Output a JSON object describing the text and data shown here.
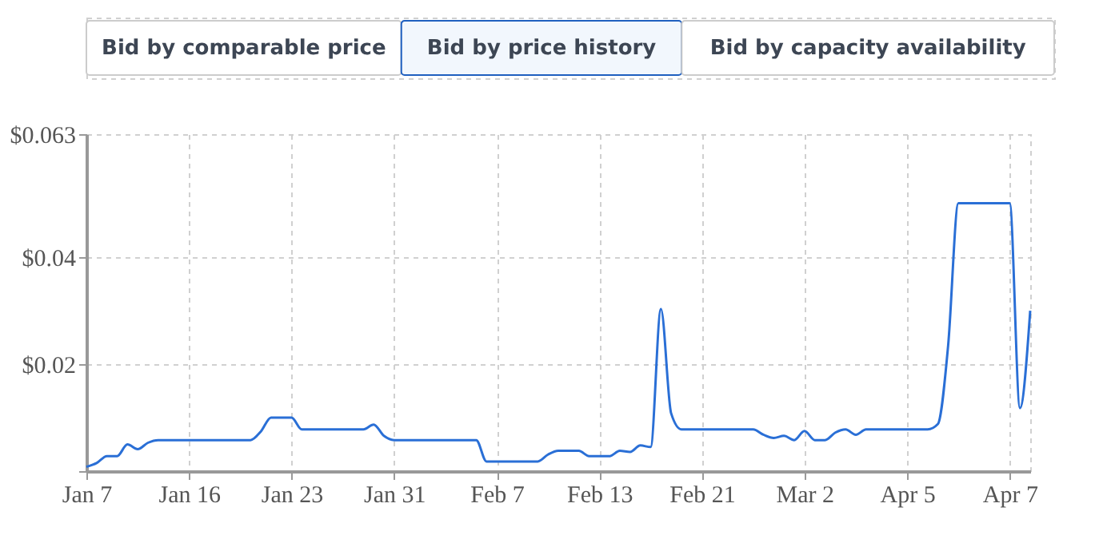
{
  "chart_data": {
    "type": "line",
    "annotations": [
      "Bid by comparable price",
      "Bid by price history",
      "Bid by capacity availability"
    ],
    "categories": [
      "Jan 7",
      null,
      null,
      null,
      null,
      null,
      null,
      null,
      null,
      null,
      "Jan 16",
      null,
      null,
      null,
      null,
      null,
      null,
      null,
      null,
      null,
      "Jan 23",
      null,
      null,
      null,
      null,
      null,
      null,
      null,
      null,
      null,
      "Jan 31",
      null,
      null,
      null,
      null,
      null,
      null,
      null,
      null,
      null,
      "Feb 7",
      null,
      null,
      null,
      null,
      null,
      null,
      null,
      null,
      null,
      "Feb 13",
      null,
      null,
      null,
      null,
      null,
      null,
      null,
      null,
      null,
      "Feb 21",
      null,
      null,
      null,
      null,
      null,
      null,
      null,
      null,
      null,
      "Mar 2",
      null,
      null,
      null,
      null,
      null,
      null,
      null,
      null,
      null,
      "Apr 5",
      null,
      null,
      null,
      null,
      null,
      null,
      null,
      null,
      null,
      "Apr 7",
      null,
      null
    ],
    "series": [
      {
        "color": "#2a6fd6",
        "values": [
          0.0008,
          0.0015,
          0.0028,
          0.0028,
          0.005,
          0.0041,
          0.0053,
          0.0058,
          0.0058,
          0.0058,
          0.0058,
          0.0058,
          0.0058,
          0.0058,
          0.0058,
          0.0058,
          0.0058,
          0.0074,
          0.01,
          0.01,
          0.01,
          0.0078,
          0.0078,
          0.0078,
          0.0078,
          0.0078,
          0.0078,
          0.0078,
          0.0087,
          0.0066,
          0.0058,
          0.0058,
          0.0058,
          0.0058,
          0.0058,
          0.0058,
          0.0058,
          0.0058,
          0.0058,
          0.0018,
          0.0018,
          0.0018,
          0.0018,
          0.0018,
          0.0018,
          0.0031,
          0.0038,
          0.0038,
          0.0038,
          0.0028,
          0.0028,
          0.0028,
          0.0038,
          0.0036,
          0.0048,
          0.0045,
          0.0303,
          0.0108,
          0.0078,
          0.0078,
          0.0078,
          0.0078,
          0.0078,
          0.0078,
          0.0078,
          0.0078,
          0.0068,
          0.0062,
          0.0066,
          0.0058,
          0.0075,
          0.0058,
          0.0058,
          0.0072,
          0.0078,
          0.0068,
          0.0078,
          0.0078,
          0.0078,
          0.0078,
          0.0078,
          0.0078,
          0.0078,
          0.0088,
          0.0235,
          0.0501,
          0.0501,
          0.0501,
          0.0501,
          0.0501,
          0.0501,
          0.0118,
          0.03
        ]
      }
    ],
    "ylim": [
      0,
      0.063
    ],
    "yticks": [
      {
        "value": 0,
        "label": null
      },
      {
        "value": 0.02,
        "label": "$0.02"
      },
      {
        "value": 0.04,
        "label": "$0.04"
      },
      {
        "value": 0.063,
        "label": "$0.063"
      }
    ],
    "grid": true,
    "marker": "none",
    "line_style": "solid"
  }
}
